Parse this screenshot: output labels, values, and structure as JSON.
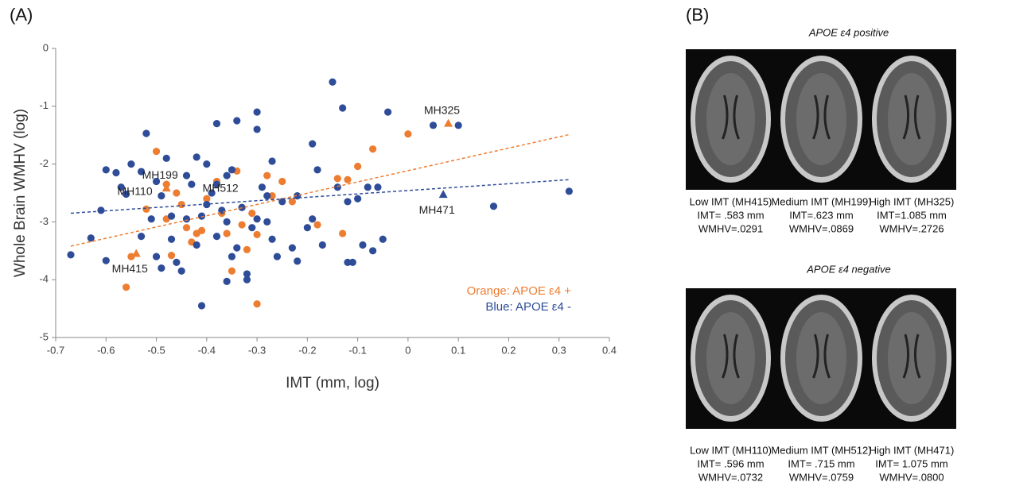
{
  "chart_data": {
    "type": "scatter",
    "panel_label": "(A)",
    "x_label": "IMT (mm, log)",
    "y_label": "Whole Brain WMHV (log)",
    "xlim": [
      -0.7,
      0.4
    ],
    "ylim": [
      -5,
      0
    ],
    "xticks": [
      -0.7,
      -0.6,
      -0.5,
      -0.4,
      -0.3,
      -0.2,
      -0.1,
      0,
      0.1,
      0.2,
      0.3,
      0.4
    ],
    "yticks": [
      0,
      -1,
      -2,
      -3,
      -4,
      -5
    ],
    "grid": false,
    "series": [
      {
        "name": "Orange: APOE ε4 +",
        "color": "#ed7d31",
        "x": [
          -0.56,
          -0.55,
          -0.5,
          -0.48,
          -0.47,
          -0.46,
          -0.45,
          -0.43,
          -0.42,
          -0.41,
          -0.4,
          -0.38,
          -0.37,
          -0.36,
          -0.35,
          -0.34,
          -0.33,
          -0.32,
          -0.31,
          -0.3,
          -0.3,
          -0.28,
          -0.27,
          -0.25,
          -0.23,
          -0.18,
          -0.14,
          -0.13,
          -0.12,
          -0.1,
          -0.07,
          0,
          -0.44,
          -0.52,
          -0.48,
          -0.33
        ],
        "values": [
          -4.13,
          -3.6,
          -1.78,
          -2.95,
          -3.58,
          -2.5,
          -2.7,
          -3.35,
          -3.2,
          -3.15,
          -2.6,
          -2.3,
          -2.85,
          -3.2,
          -3.85,
          -2.12,
          -2.75,
          -3.48,
          -2.85,
          -3.22,
          -4.42,
          -2.2,
          -2.55,
          -2.3,
          -2.65,
          -3.05,
          -2.25,
          -3.2,
          -2.27,
          -2.04,
          -1.74,
          -1.48,
          -3.1,
          -2.78,
          -2.35,
          -3.05
        ]
      },
      {
        "name": "Blue: APOE ε4 -",
        "color": "#2e4c98",
        "x": [
          -0.67,
          -0.6,
          -0.61,
          -0.63,
          -0.6,
          -0.58,
          -0.57,
          -0.56,
          -0.55,
          -0.53,
          -0.52,
          -0.51,
          -0.5,
          -0.49,
          -0.48,
          -0.47,
          -0.5,
          -0.49,
          -0.47,
          -0.46,
          -0.45,
          -0.44,
          -0.43,
          -0.42,
          -0.41,
          -0.41,
          -0.4,
          -0.39,
          -0.38,
          -0.37,
          -0.36,
          -0.35,
          -0.34,
          -0.33,
          -0.32,
          -0.31,
          -0.3,
          -0.3,
          -0.29,
          -0.28,
          -0.27,
          -0.26,
          -0.25,
          -0.23,
          -0.22,
          -0.2,
          -0.19,
          -0.18,
          -0.17,
          -0.15,
          -0.14,
          -0.13,
          -0.12,
          -0.11,
          -0.1,
          -0.09,
          -0.08,
          -0.07,
          -0.06,
          -0.05,
          -0.04,
          0.05,
          0.1,
          0.17,
          0.32,
          -0.38,
          -0.36,
          -0.34,
          -0.32,
          -0.36,
          -0.27,
          -0.3,
          -0.28,
          -0.22,
          -0.42,
          -0.4,
          -0.44,
          -0.53,
          -0.38,
          -0.35,
          -0.12,
          -0.19
        ],
        "values": [
          -3.57,
          -3.67,
          -2.8,
          -3.28,
          -2.1,
          -2.15,
          -2.4,
          -2.52,
          -2.0,
          -2.13,
          -1.47,
          -2.95,
          -2.3,
          -2.55,
          -1.9,
          -2.9,
          -3.6,
          -3.8,
          -3.3,
          -3.7,
          -3.85,
          -2.2,
          -2.35,
          -3.4,
          -2.9,
          -4.45,
          -2.0,
          -2.5,
          -1.3,
          -2.8,
          -2.2,
          -3.6,
          -1.25,
          -2.75,
          -3.9,
          -3.1,
          -1.1,
          -1.4,
          -2.4,
          -3.0,
          -1.95,
          -3.6,
          -2.65,
          -3.45,
          -2.55,
          -3.1,
          -1.65,
          -2.1,
          -3.4,
          -0.58,
          -2.4,
          -1.03,
          -2.65,
          -3.7,
          -2.6,
          -3.4,
          -2.4,
          -3.5,
          -2.4,
          -3.3,
          -1.1,
          -1.33,
          -1.33,
          -2.73,
          -2.47,
          -3.25,
          -3.0,
          -3.45,
          -4.0,
          -4.03,
          -3.3,
          -2.95,
          -2.55,
          -3.68,
          -1.88,
          -2.7,
          -2.95,
          -3.25,
          -2.35,
          -2.1,
          -3.7,
          -2.95
        ]
      }
    ],
    "trendlines": [
      {
        "color": "#ed7d31",
        "x": [
          -0.67,
          0.32
        ],
        "values": [
          -3.42,
          -1.49
        ]
      },
      {
        "color": "#2e4c98",
        "x": [
          -0.67,
          0.32
        ],
        "values": [
          -2.85,
          -2.27
        ]
      }
    ],
    "annotations": [
      {
        "text": "MH325",
        "x": 0.08,
        "y": -1.3,
        "marker": "triangle",
        "color": "#ed7d31",
        "position": "above"
      },
      {
        "text": "MH199",
        "x": -0.48,
        "y": -2.42,
        "marker": "triangle",
        "color": "#ed7d31",
        "position": "above"
      },
      {
        "text": "MH110",
        "x": -0.53,
        "y": -2.7,
        "marker": "none",
        "color": "#2e4c98",
        "position": "above"
      },
      {
        "text": "MH512",
        "x": -0.36,
        "y": -2.65,
        "marker": "none",
        "color": "#2e4c98",
        "position": "above"
      },
      {
        "text": "MH415",
        "x": -0.54,
        "y": -3.55,
        "marker": "triangle",
        "color": "#ed7d31",
        "position": "below"
      },
      {
        "text": "MH471",
        "x": 0.07,
        "y": -2.53,
        "marker": "triangle",
        "color": "#2e4c98",
        "position": "below"
      }
    ]
  },
  "panel_b": {
    "label": "(B)",
    "groups": [
      {
        "title": "APOE ε4 positive",
        "captions": [
          [
            "Low IMT (MH415)",
            "IMT= .583 mm",
            "WMHV=.0291"
          ],
          [
            "Medium IMT (MH199)",
            "IMT=.623 mm",
            "WMHV=.0869"
          ],
          [
            "High IMT (MH325)",
            "IMT=1.085 mm",
            "WMHV=.2726"
          ]
        ]
      },
      {
        "title": "APOE ε4 negative",
        "captions": [
          [
            "Low IMT (MH110)",
            "IMT= .596 mm",
            "WMHV=.0732"
          ],
          [
            "Medium IMT (MH512)",
            "IMT= .715 mm",
            "WMHV=.0759"
          ],
          [
            "High IMT (MH471)",
            "IMT= 1.075 mm",
            "WMHV=.0800"
          ]
        ]
      }
    ]
  }
}
